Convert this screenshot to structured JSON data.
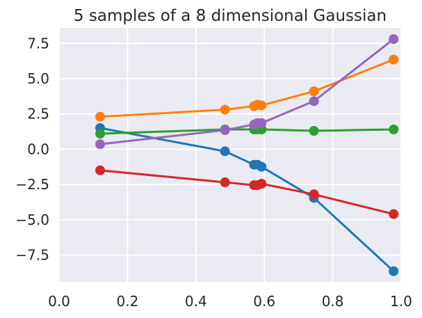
{
  "chart_data": {
    "type": "line",
    "title": "5 samples of a 8 dimensional Gaussian",
    "xlabel": "",
    "ylabel": "",
    "xlim": [
      0.0,
      1.0
    ],
    "ylim": [
      -9.4,
      8.6
    ],
    "grid": true,
    "style": "seaborn-darkgrid",
    "x_ticks": [
      0.0,
      0.2,
      0.4,
      0.6,
      0.8,
      1.0
    ],
    "x_tick_labels": [
      "0.0",
      "0.2",
      "0.4",
      "0.6",
      "0.8",
      "1.0"
    ],
    "y_ticks": [
      7.5,
      5.0,
      2.5,
      0.0,
      -2.5,
      -5.0,
      -7.5
    ],
    "y_tick_labels": [
      "7.5",
      "5.0",
      "2.5",
      "0.0",
      "−2.5",
      "−5.0",
      "−7.5"
    ],
    "x": [
      0.12,
      0.485,
      0.57,
      0.58,
      0.592,
      0.745,
      0.978
    ],
    "series": [
      {
        "color": "#1f77b4",
        "values": [
          1.5,
          -0.15,
          -1.1,
          -1.1,
          -1.25,
          -3.45,
          -8.65
        ]
      },
      {
        "color": "#ff7f0e",
        "values": [
          2.3,
          2.8,
          3.05,
          3.15,
          3.1,
          4.1,
          6.35
        ]
      },
      {
        "color": "#2ca02c",
        "values": [
          1.1,
          1.4,
          1.4,
          1.4,
          1.4,
          1.3,
          1.4
        ]
      },
      {
        "color": "#d62728",
        "values": [
          -1.5,
          -2.35,
          -2.55,
          -2.55,
          -2.45,
          -3.2,
          -4.6
        ]
      },
      {
        "color": "#9467bd",
        "values": [
          0.35,
          1.35,
          1.75,
          1.85,
          1.85,
          3.4,
          7.8
        ]
      }
    ],
    "colors": {
      "plot_background": "#eaeaf2",
      "grid": "#ffffff",
      "text": "#262626"
    }
  }
}
